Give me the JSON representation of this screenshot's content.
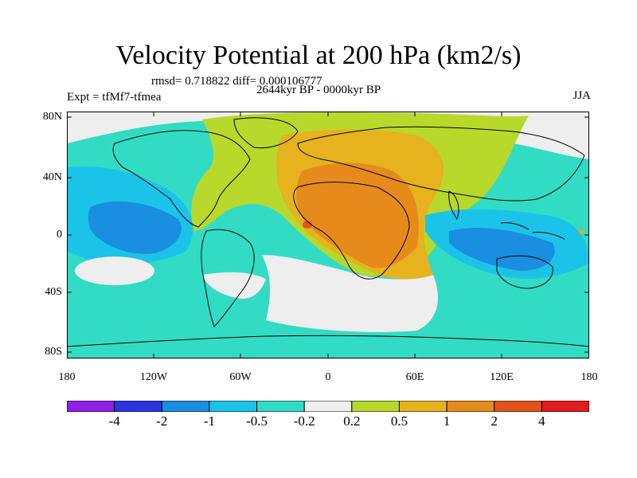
{
  "title": "Velocity Potential at 200 hPa (km2/s)",
  "stats": "rmsd= 0.718822 diff= 0.000106777",
  "expt": "Expt = tfMf7-tfmea",
  "period": "2644kyr BP - 0000kyr BP",
  "season": "JJA",
  "y_ticks": [
    "80N",
    "40N",
    "0",
    "40S",
    "80S"
  ],
  "x_ticks": [
    "180",
    "120W",
    "60W",
    "0",
    "60E",
    "120E",
    "180"
  ],
  "colorbar": {
    "labels": [
      "-4",
      "-2",
      "-1",
      "-0.5",
      "-0.2",
      "0.2",
      "0.5",
      "1",
      "2",
      "4"
    ],
    "colors": [
      "#8f1ee6",
      "#2d35e0",
      "#1a8ee0",
      "#1cc3e8",
      "#32dcc4",
      "#eeeeee",
      "#b8d82c",
      "#e6b21e",
      "#e68a1c",
      "#e0541c",
      "#e01c1c"
    ]
  }
}
